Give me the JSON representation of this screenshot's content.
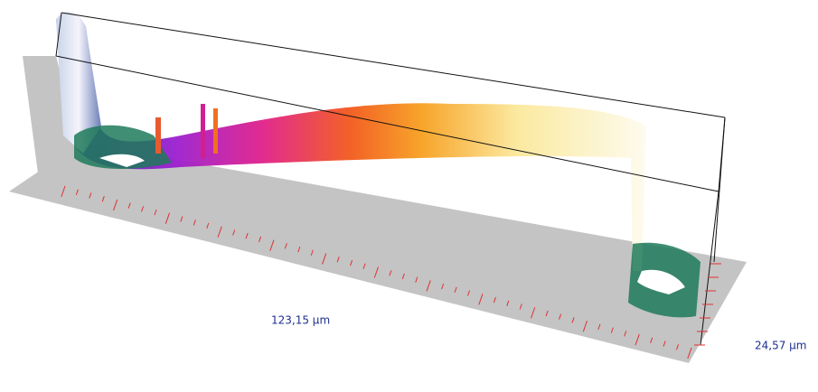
{
  "labels": {
    "x_length": "123,15 µm",
    "y_length": "24,57 µm"
  }
}
